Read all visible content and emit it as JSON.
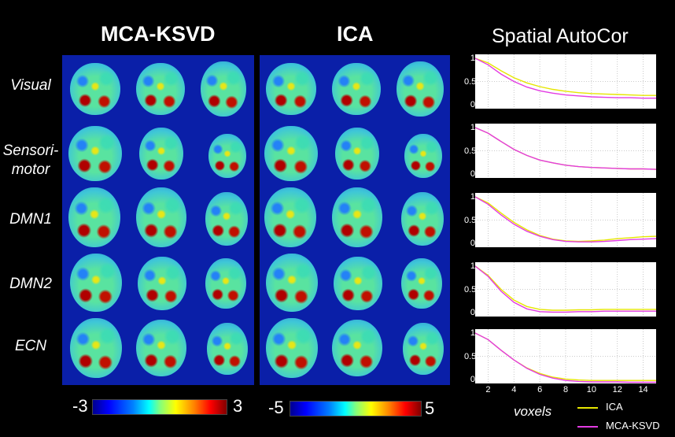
{
  "titles": {
    "mca": "MCA-KSVD",
    "ica": "ICA",
    "autocor": "Spatial AutoCor"
  },
  "rows": [
    {
      "label": "Visual"
    },
    {
      "label": "Sensori-\nmotor"
    },
    {
      "label": "DMN1"
    },
    {
      "label": "DMN2"
    },
    {
      "label": "ECN"
    }
  ],
  "colorbars": {
    "mca": {
      "min": "-3",
      "max": "3"
    },
    "ica": {
      "min": "-5",
      "max": "5"
    },
    "colors": [
      "#00008f",
      "#0000ff",
      "#0080ff",
      "#00ffff",
      "#80ff80",
      "#ffff00",
      "#ff8000",
      "#ff0000",
      "#800000"
    ]
  },
  "chart_data": {
    "type": "line",
    "title": "Spatial AutoCor",
    "xlabel": "voxels",
    "xlim": [
      1,
      15
    ],
    "ylim": [
      0,
      1
    ],
    "xticks": [
      "2",
      "4",
      "6",
      "8",
      "10",
      "12",
      "14"
    ],
    "yticks": [
      "1",
      "0.5",
      "0"
    ],
    "legend": [
      "ICA",
      "MCA-KSVD"
    ],
    "colors": {
      "ICA": "#e6e600",
      "MCA-KSVD": "#e33be3"
    },
    "x": [
      1,
      2,
      3,
      4,
      5,
      6,
      7,
      8,
      9,
      10,
      11,
      12,
      13,
      14,
      15
    ],
    "panels": [
      {
        "name": "Visual",
        "series": [
          {
            "name": "ICA",
            "values": [
              1.0,
              0.9,
              0.73,
              0.58,
              0.47,
              0.39,
              0.33,
              0.29,
              0.26,
              0.24,
              0.23,
              0.22,
              0.21,
              0.2,
              0.2
            ]
          },
          {
            "name": "MCA-KSVD",
            "values": [
              1.0,
              0.86,
              0.66,
              0.5,
              0.38,
              0.3,
              0.25,
              0.21,
              0.19,
              0.17,
              0.16,
              0.15,
              0.15,
              0.14,
              0.14
            ]
          }
        ]
      },
      {
        "name": "Sensori-motor",
        "series": [
          {
            "name": "ICA",
            "values": [
              1.0,
              0.88,
              0.7,
              0.53,
              0.4,
              0.3,
              0.24,
              0.19,
              0.16,
              0.14,
              0.13,
              0.12,
              0.11,
              0.11,
              0.1
            ]
          },
          {
            "name": "MCA-KSVD",
            "values": [
              1.0,
              0.88,
              0.7,
              0.53,
              0.4,
              0.3,
              0.24,
              0.19,
              0.16,
              0.14,
              0.13,
              0.12,
              0.11,
              0.11,
              0.1
            ]
          }
        ]
      },
      {
        "name": "DMN1",
        "series": [
          {
            "name": "ICA",
            "values": [
              1.0,
              0.87,
              0.65,
              0.45,
              0.29,
              0.17,
              0.09,
              0.05,
              0.04,
              0.05,
              0.07,
              0.1,
              0.12,
              0.14,
              0.15
            ]
          },
          {
            "name": "MCA-KSVD",
            "values": [
              1.0,
              0.84,
              0.61,
              0.41,
              0.26,
              0.15,
              0.08,
              0.04,
              0.03,
              0.03,
              0.04,
              0.06,
              0.08,
              0.09,
              0.1
            ]
          }
        ]
      },
      {
        "name": "DMN2",
        "series": [
          {
            "name": "ICA",
            "values": [
              1.0,
              0.8,
              0.5,
              0.27,
              0.13,
              0.07,
              0.05,
              0.05,
              0.06,
              0.06,
              0.07,
              0.07,
              0.07,
              0.07,
              0.07
            ]
          },
          {
            "name": "MCA-KSVD",
            "values": [
              1.0,
              0.78,
              0.46,
              0.22,
              0.08,
              0.02,
              0.01,
              0.01,
              0.02,
              0.02,
              0.03,
              0.03,
              0.03,
              0.03,
              0.03
            ]
          }
        ]
      },
      {
        "name": "ECN",
        "series": [
          {
            "name": "ICA",
            "values": [
              1.0,
              0.86,
              0.63,
              0.42,
              0.25,
              0.13,
              0.05,
              0.01,
              -0.01,
              -0.02,
              -0.02,
              -0.02,
              -0.02,
              -0.02,
              -0.02
            ]
          },
          {
            "name": "MCA-KSVD",
            "values": [
              1.0,
              0.86,
              0.63,
              0.42,
              0.24,
              0.11,
              0.03,
              -0.02,
              -0.04,
              -0.05,
              -0.05,
              -0.05,
              -0.06,
              -0.06,
              -0.06
            ]
          }
        ]
      }
    ]
  }
}
